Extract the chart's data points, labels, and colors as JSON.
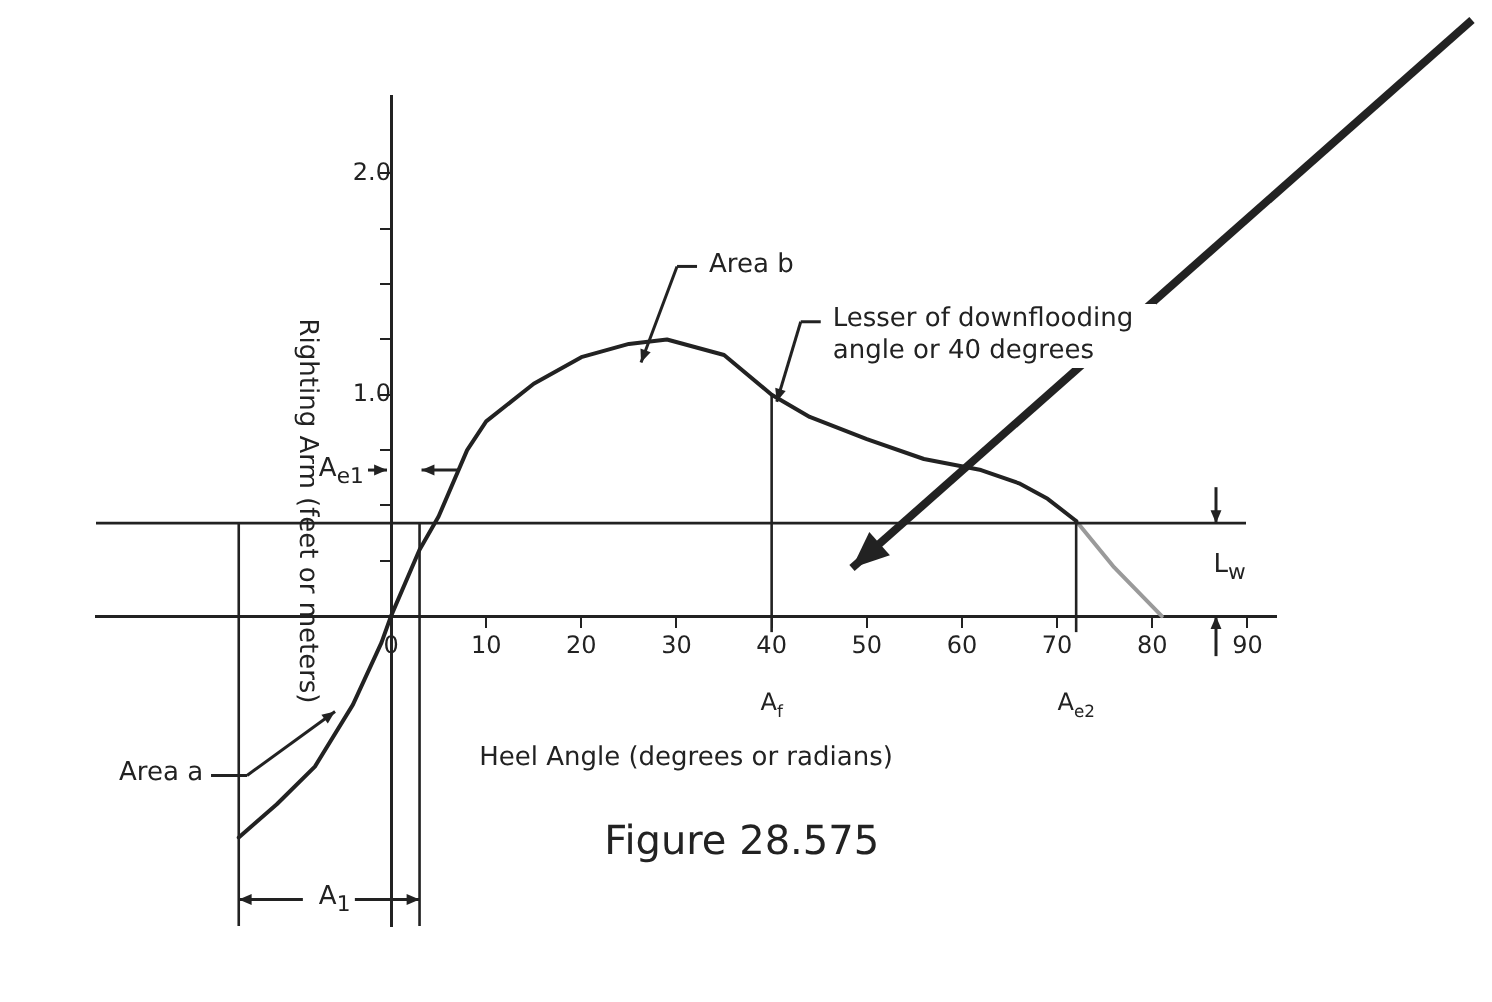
{
  "chart_data": {
    "type": "line",
    "xlabel": "Heel Angle (degrees or radians)",
    "ylabel": "Righting Arm (feet or meters)",
    "series": [
      {
        "color": "#222222",
        "x": [
          -16,
          -12,
          -8,
          -4,
          -1,
          0,
          3,
          5,
          8,
          10,
          15,
          20,
          25,
          29,
          35,
          40,
          44,
          50,
          56,
          62,
          66,
          69,
          72
        ],
        "values": [
          -1.0,
          -0.85,
          -0.68,
          -0.4,
          -0.12,
          0,
          0.3,
          0.45,
          0.75,
          0.88,
          1.05,
          1.17,
          1.23,
          1.25,
          1.18,
          1.0,
          0.9,
          0.8,
          0.71,
          0.66,
          0.6,
          0.53,
          0.43
        ]
      },
      {
        "color": "#9a9a9a",
        "x": [
          72,
          76,
          81
        ],
        "values": [
          0.43,
          0.22,
          0
        ]
      }
    ],
    "xlim": [
      -31,
      93
    ],
    "ylim": [
      -1.4,
      2.35
    ],
    "xticks": [
      0,
      10,
      20,
      30,
      40,
      50,
      60,
      70,
      80,
      90
    ],
    "yticks": [
      {
        "value": 0.25,
        "label": null
      },
      {
        "value": 0.5,
        "label": null
      },
      {
        "value": 0.75,
        "label": null
      },
      {
        "value": 1,
        "label": "1.0"
      },
      {
        "value": 1.25,
        "label": null
      },
      {
        "value": 1.5,
        "label": null
      },
      {
        "value": 1.75,
        "label": null
      },
      {
        "value": 2,
        "label": "2.0"
      }
    ],
    "ref_lines": [
      {
        "axis": "x",
        "value": -16
      },
      {
        "axis": "x",
        "value": 3
      },
      {
        "axis": "x",
        "value": 40,
        "label": "A$_{f}$"
      },
      {
        "axis": "x",
        "value": 72,
        "label": "A$_{e2}$"
      },
      {
        "axis": "y",
        "value": 0.42
      }
    ],
    "annotations": [
      "Area b",
      "Lesser of downflooding angle or 40 degrees",
      "Area a",
      "A$_{e1}$",
      "A$_{1}$",
      "L$_{w}$",
      "Figure 28.575"
    ],
    "grid": false,
    "legend": false,
    "marker": "none",
    "line_style": "solid"
  }
}
